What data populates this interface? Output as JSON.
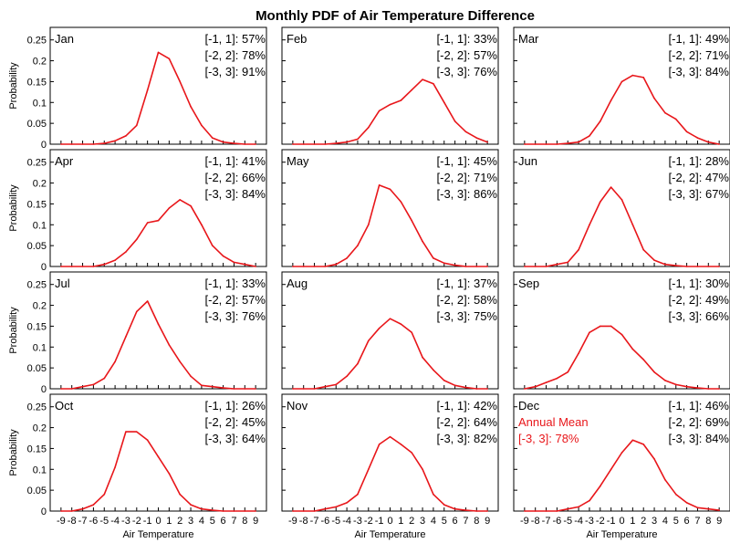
{
  "figure": {
    "title": "Monthly PDF of  Air Temperature Difference",
    "xlabel": "Air Temperature",
    "ylabel": "Probability",
    "line_color": "#e8161a"
  },
  "chart_data": {
    "type": "line",
    "x": [
      -9,
      -8,
      -7,
      -6,
      -5,
      -4,
      -3,
      -2,
      -1,
      0,
      1,
      2,
      3,
      4,
      5,
      6,
      7,
      8,
      9
    ],
    "xlim": [
      -10,
      10
    ],
    "ylim": [
      0,
      0.28
    ],
    "xticks": [
      "-9",
      "-8",
      "-7",
      "-6",
      "-5",
      "-4",
      "-3",
      "-2",
      "-1",
      "0",
      "1",
      "2",
      "3",
      "4",
      "5",
      "6",
      "7",
      "8",
      "9"
    ],
    "yticks": [
      "0",
      "0.05",
      "0.1",
      "0.15",
      "0.2",
      "0.25"
    ],
    "panels": [
      {
        "month": "Jan",
        "stats": [
          "[-1, 1]: 57%",
          "[-2, 2]: 78%",
          "[-3, 3]: 91%"
        ],
        "values": [
          0,
          0,
          0,
          0,
          0.002,
          0.008,
          0.02,
          0.045,
          0.13,
          0.22,
          0.205,
          0.15,
          0.09,
          0.045,
          0.015,
          0.005,
          0.002,
          0,
          0
        ]
      },
      {
        "month": "Feb",
        "stats": [
          "[-1, 1]: 33%",
          "[-2, 2]: 57%",
          "[-3, 3]: 76%"
        ],
        "values": [
          0,
          0,
          0,
          0,
          0.002,
          0.005,
          0.012,
          0.04,
          0.08,
          0.095,
          0.105,
          0.13,
          0.155,
          0.145,
          0.1,
          0.055,
          0.03,
          0.015,
          0.005
        ]
      },
      {
        "month": "Mar",
        "stats": [
          "[-1, 1]: 49%",
          "[-2, 2]: 71%",
          "[-3, 3]: 84%"
        ],
        "values": [
          0,
          0,
          0,
          0,
          0.002,
          0.005,
          0.02,
          0.055,
          0.105,
          0.15,
          0.165,
          0.16,
          0.11,
          0.075,
          0.06,
          0.03,
          0.015,
          0.005,
          0
        ]
      },
      {
        "month": "Apr",
        "stats": [
          "[-1, 1]: 41%",
          "[-2, 2]: 66%",
          "[-3, 3]: 84%"
        ],
        "values": [
          0,
          0,
          0,
          0,
          0.005,
          0.015,
          0.035,
          0.065,
          0.105,
          0.11,
          0.14,
          0.16,
          0.145,
          0.1,
          0.05,
          0.025,
          0.01,
          0.005,
          0
        ]
      },
      {
        "month": "May",
        "stats": [
          "[-1, 1]: 45%",
          "[-2, 2]: 71%",
          "[-3, 3]: 86%"
        ],
        "values": [
          0,
          0,
          0,
          0,
          0.005,
          0.02,
          0.05,
          0.1,
          0.195,
          0.185,
          0.155,
          0.11,
          0.06,
          0.02,
          0.008,
          0.003,
          0,
          0,
          0
        ]
      },
      {
        "month": "Jun",
        "stats": [
          "[-1, 1]: 28%",
          "[-2, 2]: 47%",
          "[-3, 3]: 67%"
        ],
        "values": [
          0,
          0,
          0,
          0.005,
          0.01,
          0.04,
          0.1,
          0.155,
          0.19,
          0.16,
          0.1,
          0.04,
          0.015,
          0.005,
          0.002,
          0,
          0,
          0,
          0
        ]
      },
      {
        "month": "Jul",
        "stats": [
          "[-1, 1]: 33%",
          "[-2, 2]: 57%",
          "[-3, 3]: 76%"
        ],
        "values": [
          0,
          0,
          0.005,
          0.01,
          0.025,
          0.065,
          0.125,
          0.185,
          0.21,
          0.155,
          0.105,
          0.065,
          0.03,
          0.008,
          0.005,
          0.002,
          0,
          0,
          0
        ]
      },
      {
        "month": "Aug",
        "stats": [
          "[-1, 1]: 37%",
          "[-2, 2]: 58%",
          "[-3, 3]: 75%"
        ],
        "values": [
          0,
          0,
          0,
          0.005,
          0.01,
          0.03,
          0.06,
          0.115,
          0.145,
          0.168,
          0.155,
          0.135,
          0.075,
          0.045,
          0.02,
          0.008,
          0.003,
          0,
          0
        ]
      },
      {
        "month": "Sep",
        "stats": [
          "[-1, 1]: 30%",
          "[-2, 2]: 49%",
          "[-3, 3]: 66%"
        ],
        "values": [
          0,
          0.005,
          0.015,
          0.025,
          0.04,
          0.085,
          0.135,
          0.15,
          0.15,
          0.13,
          0.095,
          0.07,
          0.04,
          0.02,
          0.01,
          0.005,
          0.002,
          0,
          0
        ]
      },
      {
        "month": "Oct",
        "stats": [
          "[-1, 1]: 26%",
          "[-2, 2]: 45%",
          "[-3, 3]: 64%"
        ],
        "values": [
          0,
          0,
          0.005,
          0.015,
          0.04,
          0.105,
          0.19,
          0.19,
          0.17,
          0.13,
          0.09,
          0.04,
          0.015,
          0.005,
          0.002,
          0,
          0,
          0,
          0
        ]
      },
      {
        "month": "Nov",
        "stats": [
          "[-1, 1]: 42%",
          "[-2, 2]: 64%",
          "[-3, 3]: 82%"
        ],
        "values": [
          0,
          0,
          0,
          0.005,
          0.01,
          0.02,
          0.04,
          0.1,
          0.16,
          0.178,
          0.16,
          0.14,
          0.1,
          0.04,
          0.015,
          0.005,
          0.002,
          0,
          0
        ]
      },
      {
        "month": "Dec",
        "stats": [
          "[-1, 1]: 46%",
          "[-2, 2]: 69%",
          "[-3, 3]: 84%"
        ],
        "note": [
          "Annual Mean",
          "[-3, 3]: 78%"
        ],
        "values": [
          0,
          0,
          0,
          0,
          0.005,
          0.01,
          0.025,
          0.06,
          0.1,
          0.14,
          0.17,
          0.16,
          0.125,
          0.075,
          0.04,
          0.02,
          0.008,
          0.005,
          0.002
        ]
      }
    ]
  }
}
